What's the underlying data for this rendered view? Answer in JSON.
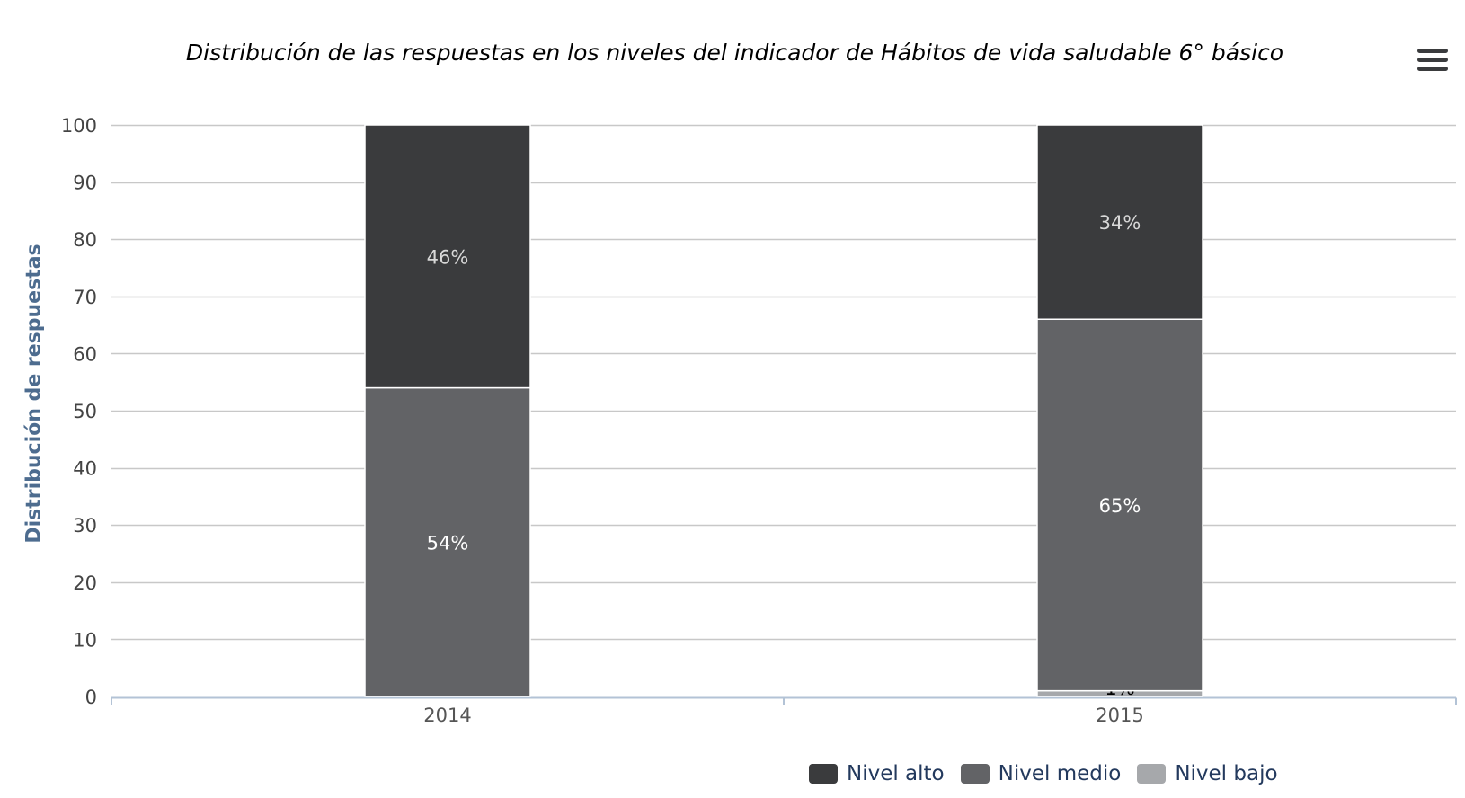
{
  "chart_data": {
    "type": "bar",
    "stacked": true,
    "title": "Distribución de las respuestas en los niveles del indicador de Hábitos de vida saludable 6° básico",
    "ylabel": "Distribución de respuestas",
    "xlabel": "",
    "categories": [
      "2014",
      "2015"
    ],
    "ylim": [
      0,
      100
    ],
    "yticks": [
      0,
      10,
      20,
      30,
      40,
      50,
      60,
      70,
      80,
      90,
      100
    ],
    "grid": true,
    "legend_position": "bottom-right",
    "series": [
      {
        "name": "Nivel alto",
        "values": [
          46,
          34
        ],
        "labels": [
          "46%",
          "34%"
        ],
        "color": "#3a3b3d"
      },
      {
        "name": "Nivel medio",
        "values": [
          54,
          65
        ],
        "labels": [
          "54%",
          "65%"
        ],
        "color": "#626366"
      },
      {
        "name": "Nivel bajo",
        "values": [
          0,
          1
        ],
        "labels": [
          "0%",
          "1%"
        ],
        "color": "#a6a8ab"
      }
    ]
  },
  "menu": {
    "icon": "hamburger-menu-icon"
  }
}
